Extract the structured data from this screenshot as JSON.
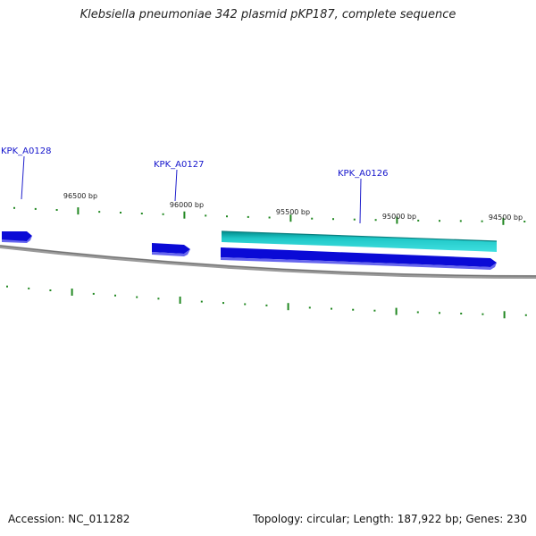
{
  "title": "Klebsiella pneumoniae 342 plasmid pKP187, complete sequence",
  "footer": {
    "accession": "Accession: NC_011282",
    "summary": "Topology: circular; Length: 187,922 bp; Genes: 230"
  },
  "colors": {
    "background": "#ffffff",
    "gene": "#1a1aff",
    "gene_shadow": "#0000a0",
    "cds": "#22cccc",
    "cds_edge": "#008888",
    "backbone": "#808080",
    "tick": "#228822",
    "label": "#0000cc"
  },
  "scale": {
    "labels": [
      "96500 bp",
      "96000 bp",
      "95500 bp",
      "95000 bp",
      "94500 bp"
    ]
  },
  "genes": [
    {
      "name": "KPK_A0128",
      "strand": "reverse"
    },
    {
      "name": "KPK_A0127",
      "strand": "reverse"
    },
    {
      "name": "KPK_A0126",
      "strand": "reverse"
    }
  ]
}
